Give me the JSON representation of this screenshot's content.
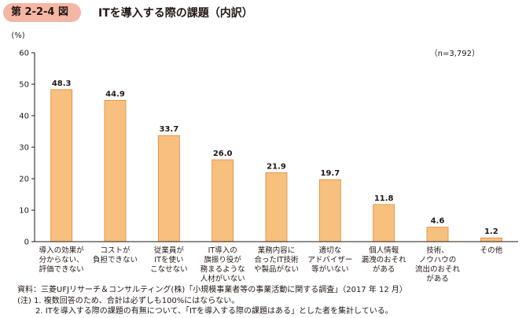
{
  "header": {
    "figure_number": "第 2-2-4 図",
    "title": "ITを導入する際の課題（内訳）"
  },
  "chart_data": {
    "type": "bar",
    "y_unit_label": "(%)",
    "sample_size_label": "（n=3,792）",
    "ylim": [
      0,
      60
    ],
    "yticks": [
      0,
      10,
      20,
      30,
      40,
      50,
      60
    ],
    "grid": false,
    "bar_color": "#f8c07f",
    "bar_stroke": "#e0893a",
    "categories": [
      [
        "導入の効果が",
        "分からない、",
        "評価できない"
      ],
      [
        "コストが",
        "負担できない"
      ],
      [
        "従業員が",
        "ITを使い",
        "こなせない"
      ],
      [
        "IT導入の",
        "旗振り役が",
        "務まるような",
        "人材がいない"
      ],
      [
        "業務内容に",
        "合ったIT技術",
        "や製品がない"
      ],
      [
        "適切な",
        "アドバイザー",
        "等がいない"
      ],
      [
        "個人情報",
        "漏洩のおそれ",
        "がある"
      ],
      [
        "技術、",
        "ノウハウの",
        "流出のおそれ",
        "がある"
      ],
      [
        "その他"
      ]
    ],
    "values": [
      48.3,
      44.9,
      33.7,
      26.0,
      21.9,
      19.7,
      11.8,
      4.6,
      1.2
    ],
    "value_labels": [
      "48.3",
      "44.9",
      "33.7",
      "26.0",
      "21.9",
      "19.7",
      "11.8",
      "4.6",
      "1.2"
    ]
  },
  "notes": {
    "source": "資料：三菱UFJリサーチ＆コンサルティング(株)「小規模事業者等の事業活動に関する調査」（2017 年 12 月）",
    "note1": "(注) 1. 複数回答のため、合計は必ずしも100%にはならない。",
    "note2": "2. ITを導入する際の課題の有無について、「ITを導入する際の課題はある」とした者を集計している。"
  }
}
